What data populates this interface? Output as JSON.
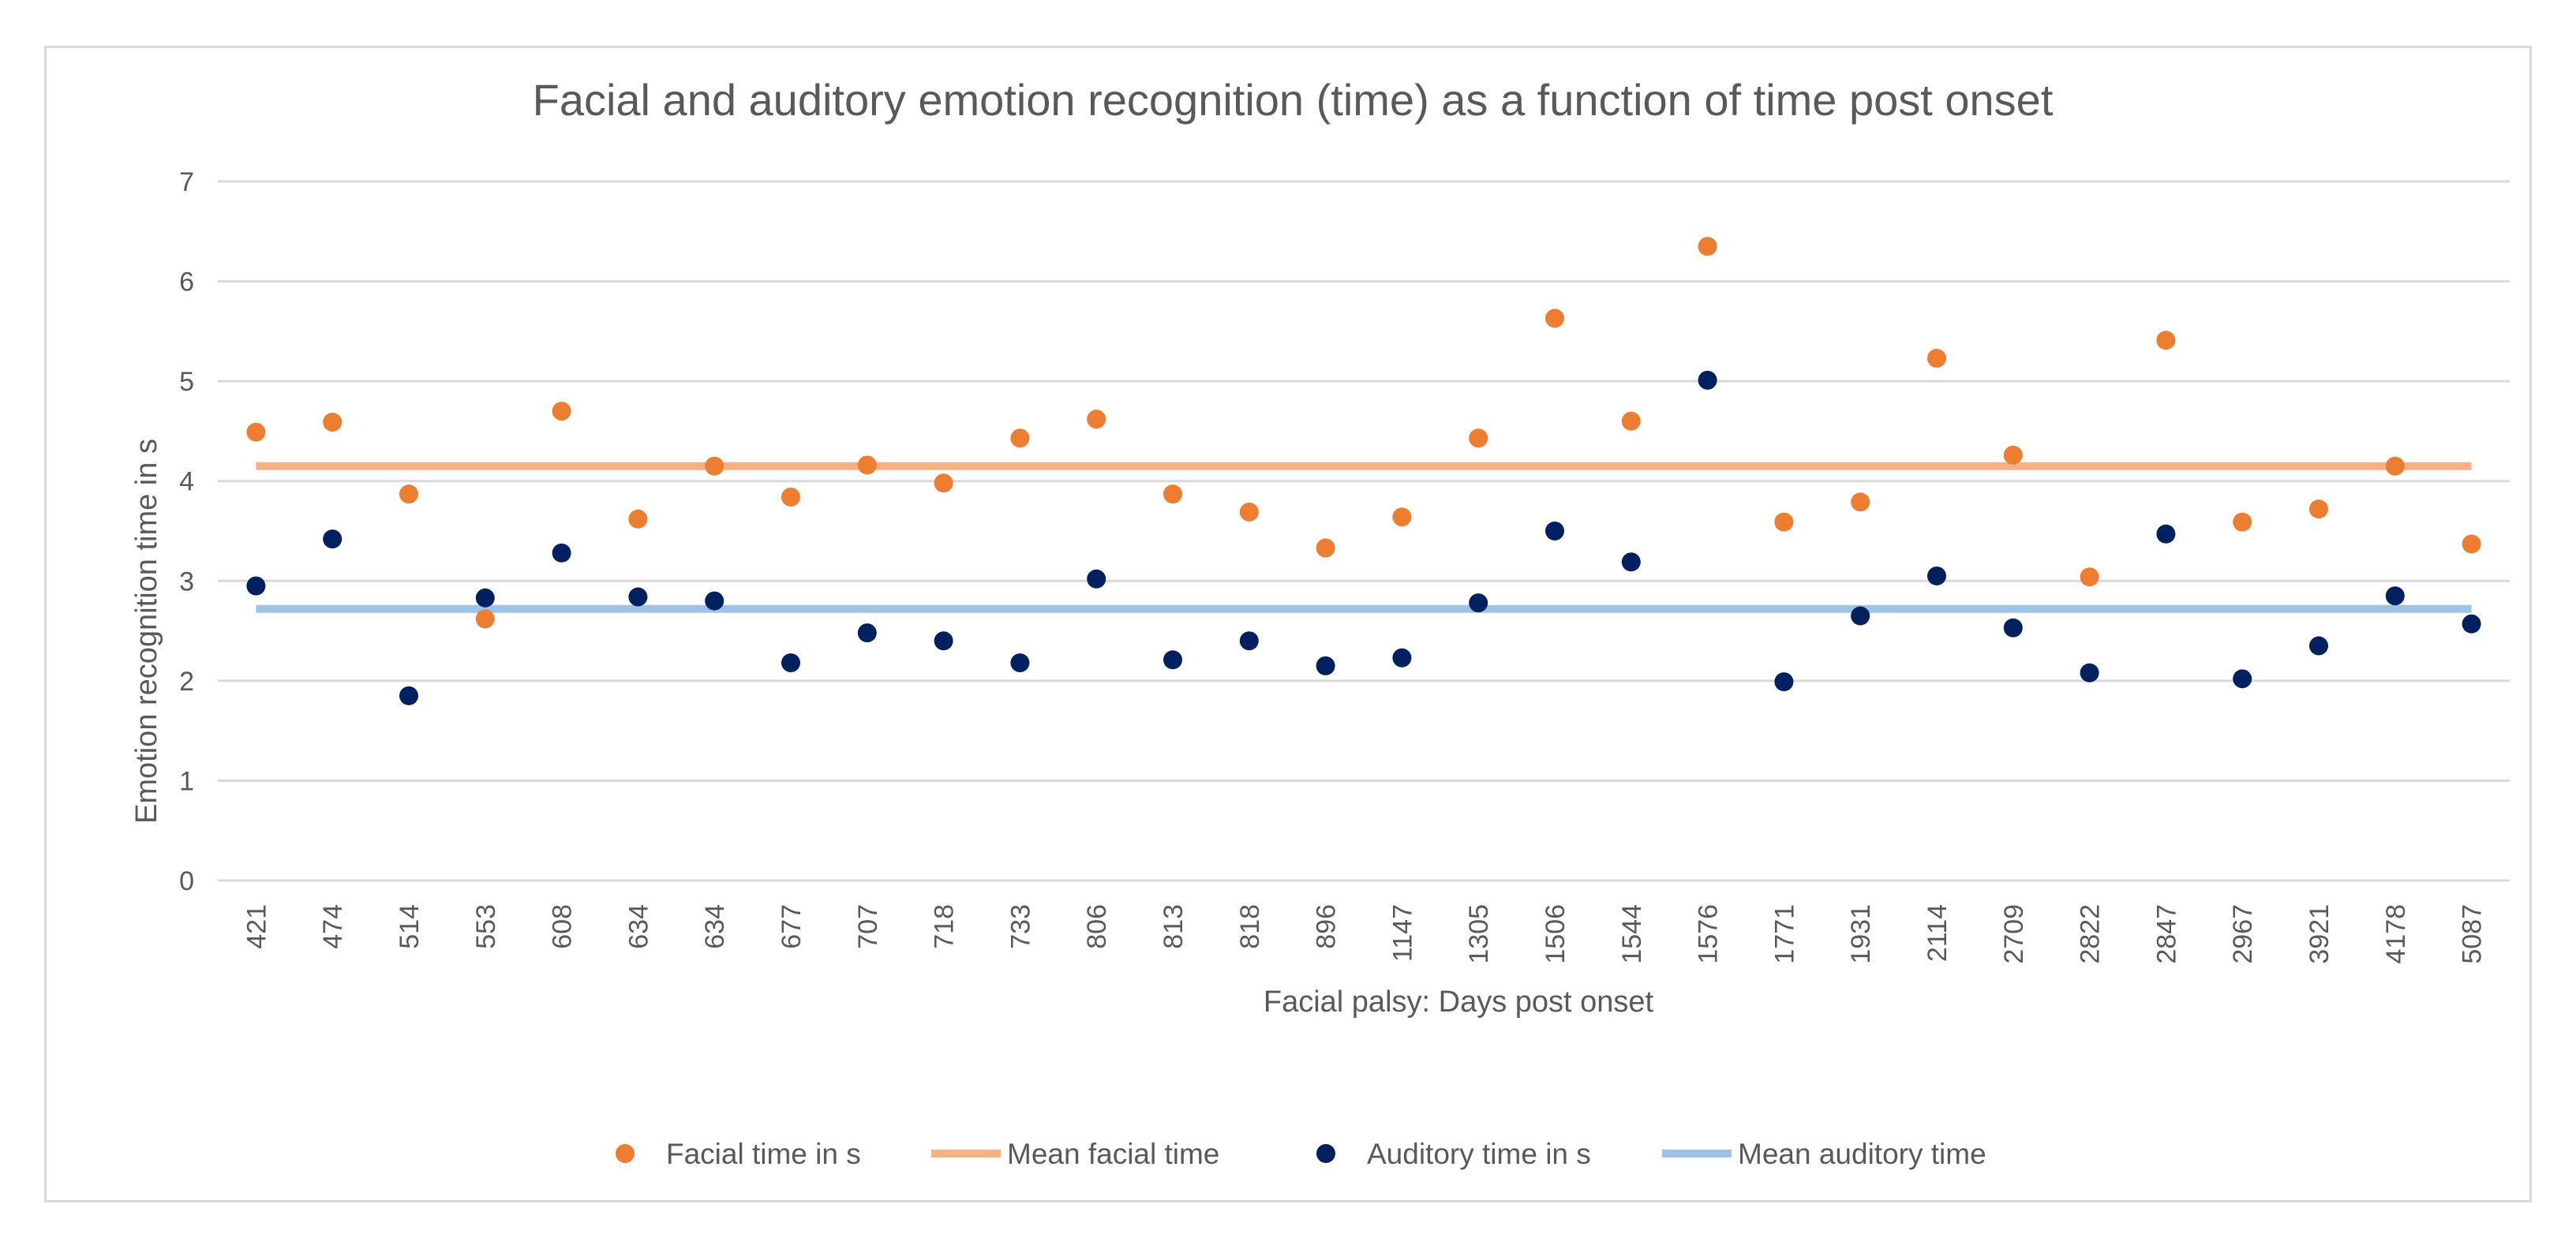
{
  "chart_data": {
    "type": "scatter",
    "title": "Facial and auditory emotion recognition (time) as a function of time post onset",
    "xlabel": "Facial palsy: Days post onset",
    "ylabel": "Emotion recognition time in s",
    "ylim": [
      0,
      7
    ],
    "yticks": [
      "0",
      "1",
      "2",
      "3",
      "4",
      "5",
      "6",
      "7"
    ],
    "grid": true,
    "legend_position": "bottom",
    "categories": [
      "421",
      "474",
      "514",
      "553",
      "608",
      "634",
      "634",
      "677",
      "707",
      "718",
      "733",
      "806",
      "813",
      "818",
      "896",
      "1147",
      "1305",
      "1506",
      "1544",
      "1576",
      "1771",
      "1931",
      "2114",
      "2709",
      "2822",
      "2847",
      "2967",
      "3921",
      "4178",
      "5087"
    ],
    "series": [
      {
        "name": "Facial time in s",
        "kind": "markers",
        "color": "#ed7d31",
        "values": [
          4.49,
          4.59,
          3.87,
          2.62,
          4.7,
          3.62,
          4.15,
          3.84,
          4.16,
          3.98,
          4.43,
          4.62,
          3.87,
          3.69,
          3.33,
          3.64,
          4.43,
          5.63,
          4.6,
          6.35,
          3.59,
          3.79,
          5.23,
          4.26,
          3.04,
          5.41,
          3.59,
          3.72,
          4.15,
          3.37
        ]
      },
      {
        "name": "Mean facial time",
        "kind": "line",
        "color": "#f4b183",
        "values": [
          4.15,
          4.15,
          4.15,
          4.15,
          4.15,
          4.15,
          4.15,
          4.15,
          4.15,
          4.15,
          4.15,
          4.15,
          4.15,
          4.15,
          4.15,
          4.15,
          4.15,
          4.15,
          4.15,
          4.15,
          4.15,
          4.15,
          4.15,
          4.15,
          4.15,
          4.15,
          4.15,
          4.15,
          4.15,
          4.15
        ]
      },
      {
        "name": "Auditory time in s",
        "kind": "markers",
        "color": "#002060",
        "values": [
          2.95,
          3.42,
          1.85,
          2.83,
          3.28,
          2.84,
          2.8,
          2.18,
          2.48,
          2.4,
          2.18,
          3.02,
          2.21,
          2.4,
          2.15,
          2.23,
          2.78,
          3.5,
          3.19,
          5.01,
          1.99,
          2.65,
          3.05,
          2.53,
          2.08,
          3.47,
          2.02,
          2.35,
          2.85,
          2.57
        ]
      },
      {
        "name": "Mean auditory time",
        "kind": "line",
        "color": "#9dc3e6",
        "values": [
          2.72,
          2.72,
          2.72,
          2.72,
          2.72,
          2.72,
          2.72,
          2.72,
          2.72,
          2.72,
          2.72,
          2.72,
          2.72,
          2.72,
          2.72,
          2.72,
          2.72,
          2.72,
          2.72,
          2.72,
          2.72,
          2.72,
          2.72,
          2.72,
          2.72,
          2.72,
          2.72,
          2.72,
          2.72,
          2.72
        ]
      }
    ]
  }
}
